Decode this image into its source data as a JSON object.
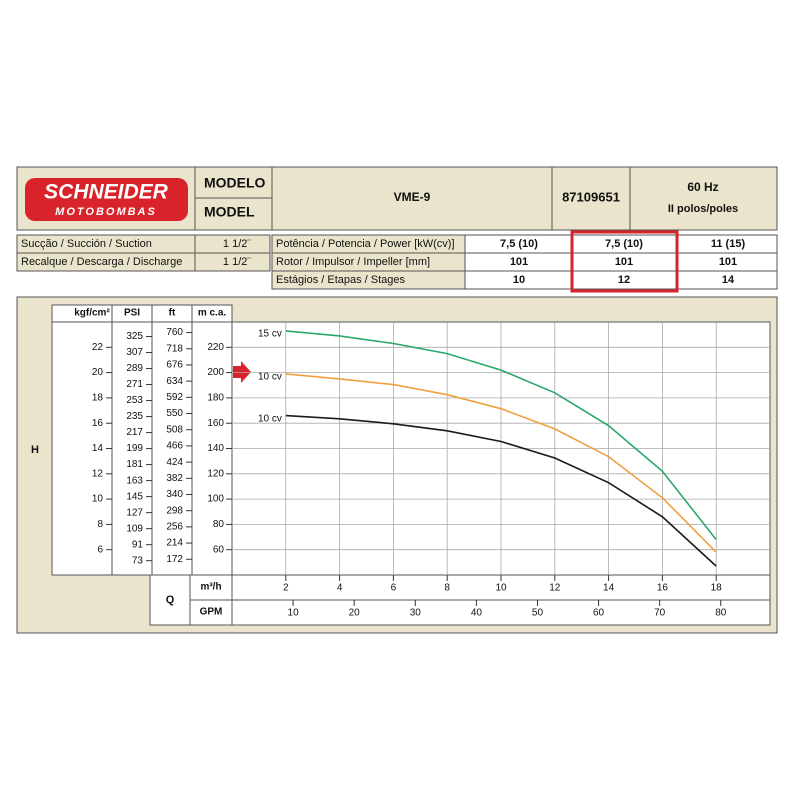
{
  "header": {
    "brand": "SCHNEIDER",
    "brand_sub": "MOTOBOMBAS",
    "model_label_pt": "MODELO",
    "model_label_en": "MODEL",
    "model": "VME-9",
    "code": "87109651",
    "frequency": "60 Hz",
    "poles": "II polos/poles"
  },
  "connections": {
    "rows": [
      [
        "Sucção / Succión / Suction",
        "1 1/2¨"
      ],
      [
        "Recalque / Descarga / Discharge",
        "1 1/2¨"
      ]
    ]
  },
  "specs": {
    "column_colors": [
      "#111111",
      "#e8922a",
      "#1f9e55"
    ],
    "rows": [
      [
        "Potência / Potencia / Power [kW(cv)]",
        "7,5 (10)",
        "7,5 (10)",
        "11 (15)"
      ],
      [
        "Rotor / Impulsor / Impeller [mm]",
        "101",
        "101",
        "101"
      ],
      [
        "Estágios / Etapas / Stages",
        "10",
        "12",
        "14"
      ]
    ]
  },
  "chart_data": {
    "type": "line",
    "y_title": "H",
    "x_title": "Q",
    "x_label": "m³/h",
    "xlim": [
      0,
      20
    ],
    "xticks": [
      2,
      4,
      6,
      8,
      10,
      12,
      14,
      16,
      18
    ],
    "x2_label": "GPM",
    "x2lim": [
      0,
      88.06
    ],
    "x2ticks": [
      10,
      20,
      30,
      40,
      50,
      60,
      70,
      80
    ],
    "y_label": "m c.a.",
    "ylim": [
      40,
      240
    ],
    "yticks": [
      60,
      80,
      100,
      120,
      140,
      160,
      180,
      200,
      220
    ],
    "grid": true,
    "extra_y_axes": [
      {
        "label": "kgf/cm²",
        "lim": [
          4,
          24
        ],
        "ticks": [
          6,
          8,
          10,
          12,
          14,
          16,
          18,
          20,
          22
        ]
      },
      {
        "label": "PSI",
        "lim": [
          56.9,
          341.3
        ],
        "ticks": [
          73,
          91,
          109,
          127,
          145,
          163,
          181,
          199,
          217,
          235,
          253,
          271,
          289,
          307,
          325
        ]
      },
      {
        "label": "ft",
        "lim": [
          131.2,
          787.4
        ],
        "ticks": [
          172,
          214,
          256,
          298,
          340,
          382,
          424,
          466,
          508,
          550,
          592,
          634,
          676,
          718,
          760
        ]
      }
    ],
    "x": [
      2,
      4,
      6,
      8,
      10,
      12,
      14,
      16,
      18
    ],
    "series": [
      {
        "name": "15 cv",
        "color": "#2aa86a",
        "values": [
          233,
          229,
          223,
          215,
          202,
          184,
          158,
          122,
          68
        ]
      },
      {
        "name": "10 cv",
        "color": "#f0a040",
        "values": [
          199,
          195,
          190.5,
          182.5,
          171.5,
          155.5,
          133.5,
          101,
          58
        ]
      },
      {
        "name": "10 cv",
        "color": "#1a1a1a",
        "values": [
          166,
          163.5,
          159.5,
          154,
          145.5,
          132.5,
          113,
          86,
          47
        ]
      }
    ]
  }
}
